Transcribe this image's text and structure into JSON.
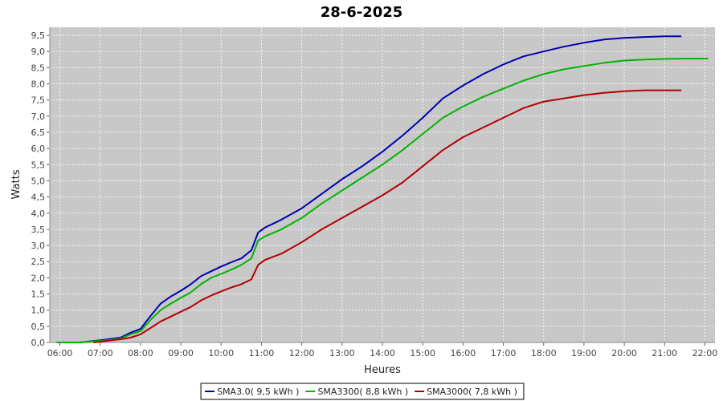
{
  "chart_data": {
    "type": "line",
    "title": "28-6-2025",
    "xlabel": "Heures",
    "ylabel": "Watts",
    "xlim": [
      "05:45",
      "22:15"
    ],
    "ylim": [
      0,
      9.75
    ],
    "grid": true,
    "legend_position": "bottom-center",
    "x_ticks": [
      "06:00",
      "07:00",
      "08:00",
      "09:00",
      "10:00",
      "11:00",
      "12:00",
      "13:00",
      "14:00",
      "15:00",
      "16:00",
      "17:00",
      "18:00",
      "19:00",
      "20:00",
      "21:00",
      "22:00"
    ],
    "y_ticks": [
      "0,0",
      "0,5",
      "1,0",
      "1,5",
      "2,0",
      "2,5",
      "3,0",
      "3,5",
      "4,0",
      "4,5",
      "5,0",
      "5,5",
      "6,0",
      "6,5",
      "7,0",
      "7,5",
      "8,0",
      "8,5",
      "9,0",
      "9,5"
    ],
    "colors": {
      "plot_background": "#c8c8c8",
      "gridline": "#ffffff"
    },
    "series": [
      {
        "name": "SMA3.0( 9,5 kWh )",
        "color": "#0000b4",
        "x": [
          "06:30",
          "07:00",
          "07:30",
          "07:45",
          "08:00",
          "08:15",
          "08:30",
          "08:45",
          "09:00",
          "09:15",
          "09:30",
          "09:45",
          "10:00",
          "10:15",
          "10:30",
          "10:45",
          "10:55",
          "11:05",
          "11:30",
          "12:00",
          "12:30",
          "13:00",
          "13:30",
          "14:00",
          "14:30",
          "15:00",
          "15:30",
          "16:00",
          "16:30",
          "17:00",
          "17:30",
          "18:00",
          "18:30",
          "19:00",
          "19:30",
          "20:00",
          "20:30",
          "21:00",
          "21:25"
        ],
        "y": [
          0.0,
          0.07,
          0.15,
          0.3,
          0.42,
          0.82,
          1.2,
          1.42,
          1.6,
          1.8,
          2.05,
          2.2,
          2.35,
          2.48,
          2.6,
          2.85,
          3.4,
          3.55,
          3.8,
          4.15,
          4.6,
          5.05,
          5.45,
          5.9,
          6.4,
          6.95,
          7.55,
          7.95,
          8.3,
          8.6,
          8.85,
          9.0,
          9.15,
          9.27,
          9.37,
          9.42,
          9.45,
          9.47,
          9.47
        ]
      },
      {
        "name": "SMA3300( 8,8 kWh )",
        "color": "#00b400",
        "x": [
          "05:55",
          "06:30",
          "07:00",
          "07:30",
          "07:45",
          "08:00",
          "08:15",
          "08:30",
          "08:45",
          "09:00",
          "09:15",
          "09:30",
          "09:45",
          "10:00",
          "10:15",
          "10:30",
          "10:45",
          "10:55",
          "11:05",
          "11:30",
          "12:00",
          "12:30",
          "13:00",
          "13:30",
          "14:00",
          "14:30",
          "15:00",
          "15:30",
          "16:00",
          "16:30",
          "17:00",
          "17:30",
          "18:00",
          "18:30",
          "19:00",
          "19:30",
          "20:00",
          "20:30",
          "21:00",
          "21:30",
          "22:05"
        ],
        "y": [
          0.0,
          0.0,
          0.05,
          0.12,
          0.25,
          0.35,
          0.7,
          1.0,
          1.2,
          1.38,
          1.55,
          1.8,
          2.0,
          2.12,
          2.25,
          2.4,
          2.6,
          3.15,
          3.28,
          3.5,
          3.85,
          4.3,
          4.7,
          5.1,
          5.5,
          5.95,
          6.45,
          6.95,
          7.3,
          7.6,
          7.85,
          8.1,
          8.3,
          8.45,
          8.55,
          8.65,
          8.72,
          8.75,
          8.77,
          8.78,
          8.78
        ]
      },
      {
        "name": "SMA3000( 7,8 kWh )",
        "color": "#b40000",
        "x": [
          "06:50",
          "07:30",
          "07:45",
          "08:00",
          "08:15",
          "08:30",
          "08:45",
          "09:00",
          "09:15",
          "09:30",
          "09:45",
          "10:00",
          "10:15",
          "10:30",
          "10:45",
          "10:55",
          "11:05",
          "11:30",
          "12:00",
          "12:30",
          "13:00",
          "13:30",
          "14:00",
          "14:30",
          "15:00",
          "15:30",
          "16:00",
          "16:30",
          "17:00",
          "17:30",
          "18:00",
          "18:30",
          "19:00",
          "19:30",
          "20:00",
          "20:30",
          "21:00",
          "21:25"
        ],
        "y": [
          0.0,
          0.1,
          0.15,
          0.25,
          0.45,
          0.65,
          0.8,
          0.95,
          1.1,
          1.3,
          1.45,
          1.58,
          1.7,
          1.8,
          1.95,
          2.4,
          2.55,
          2.75,
          3.1,
          3.5,
          3.85,
          4.2,
          4.55,
          4.95,
          5.45,
          5.95,
          6.35,
          6.65,
          6.95,
          7.25,
          7.45,
          7.55,
          7.65,
          7.72,
          7.77,
          7.8,
          7.8,
          7.8
        ]
      }
    ]
  }
}
